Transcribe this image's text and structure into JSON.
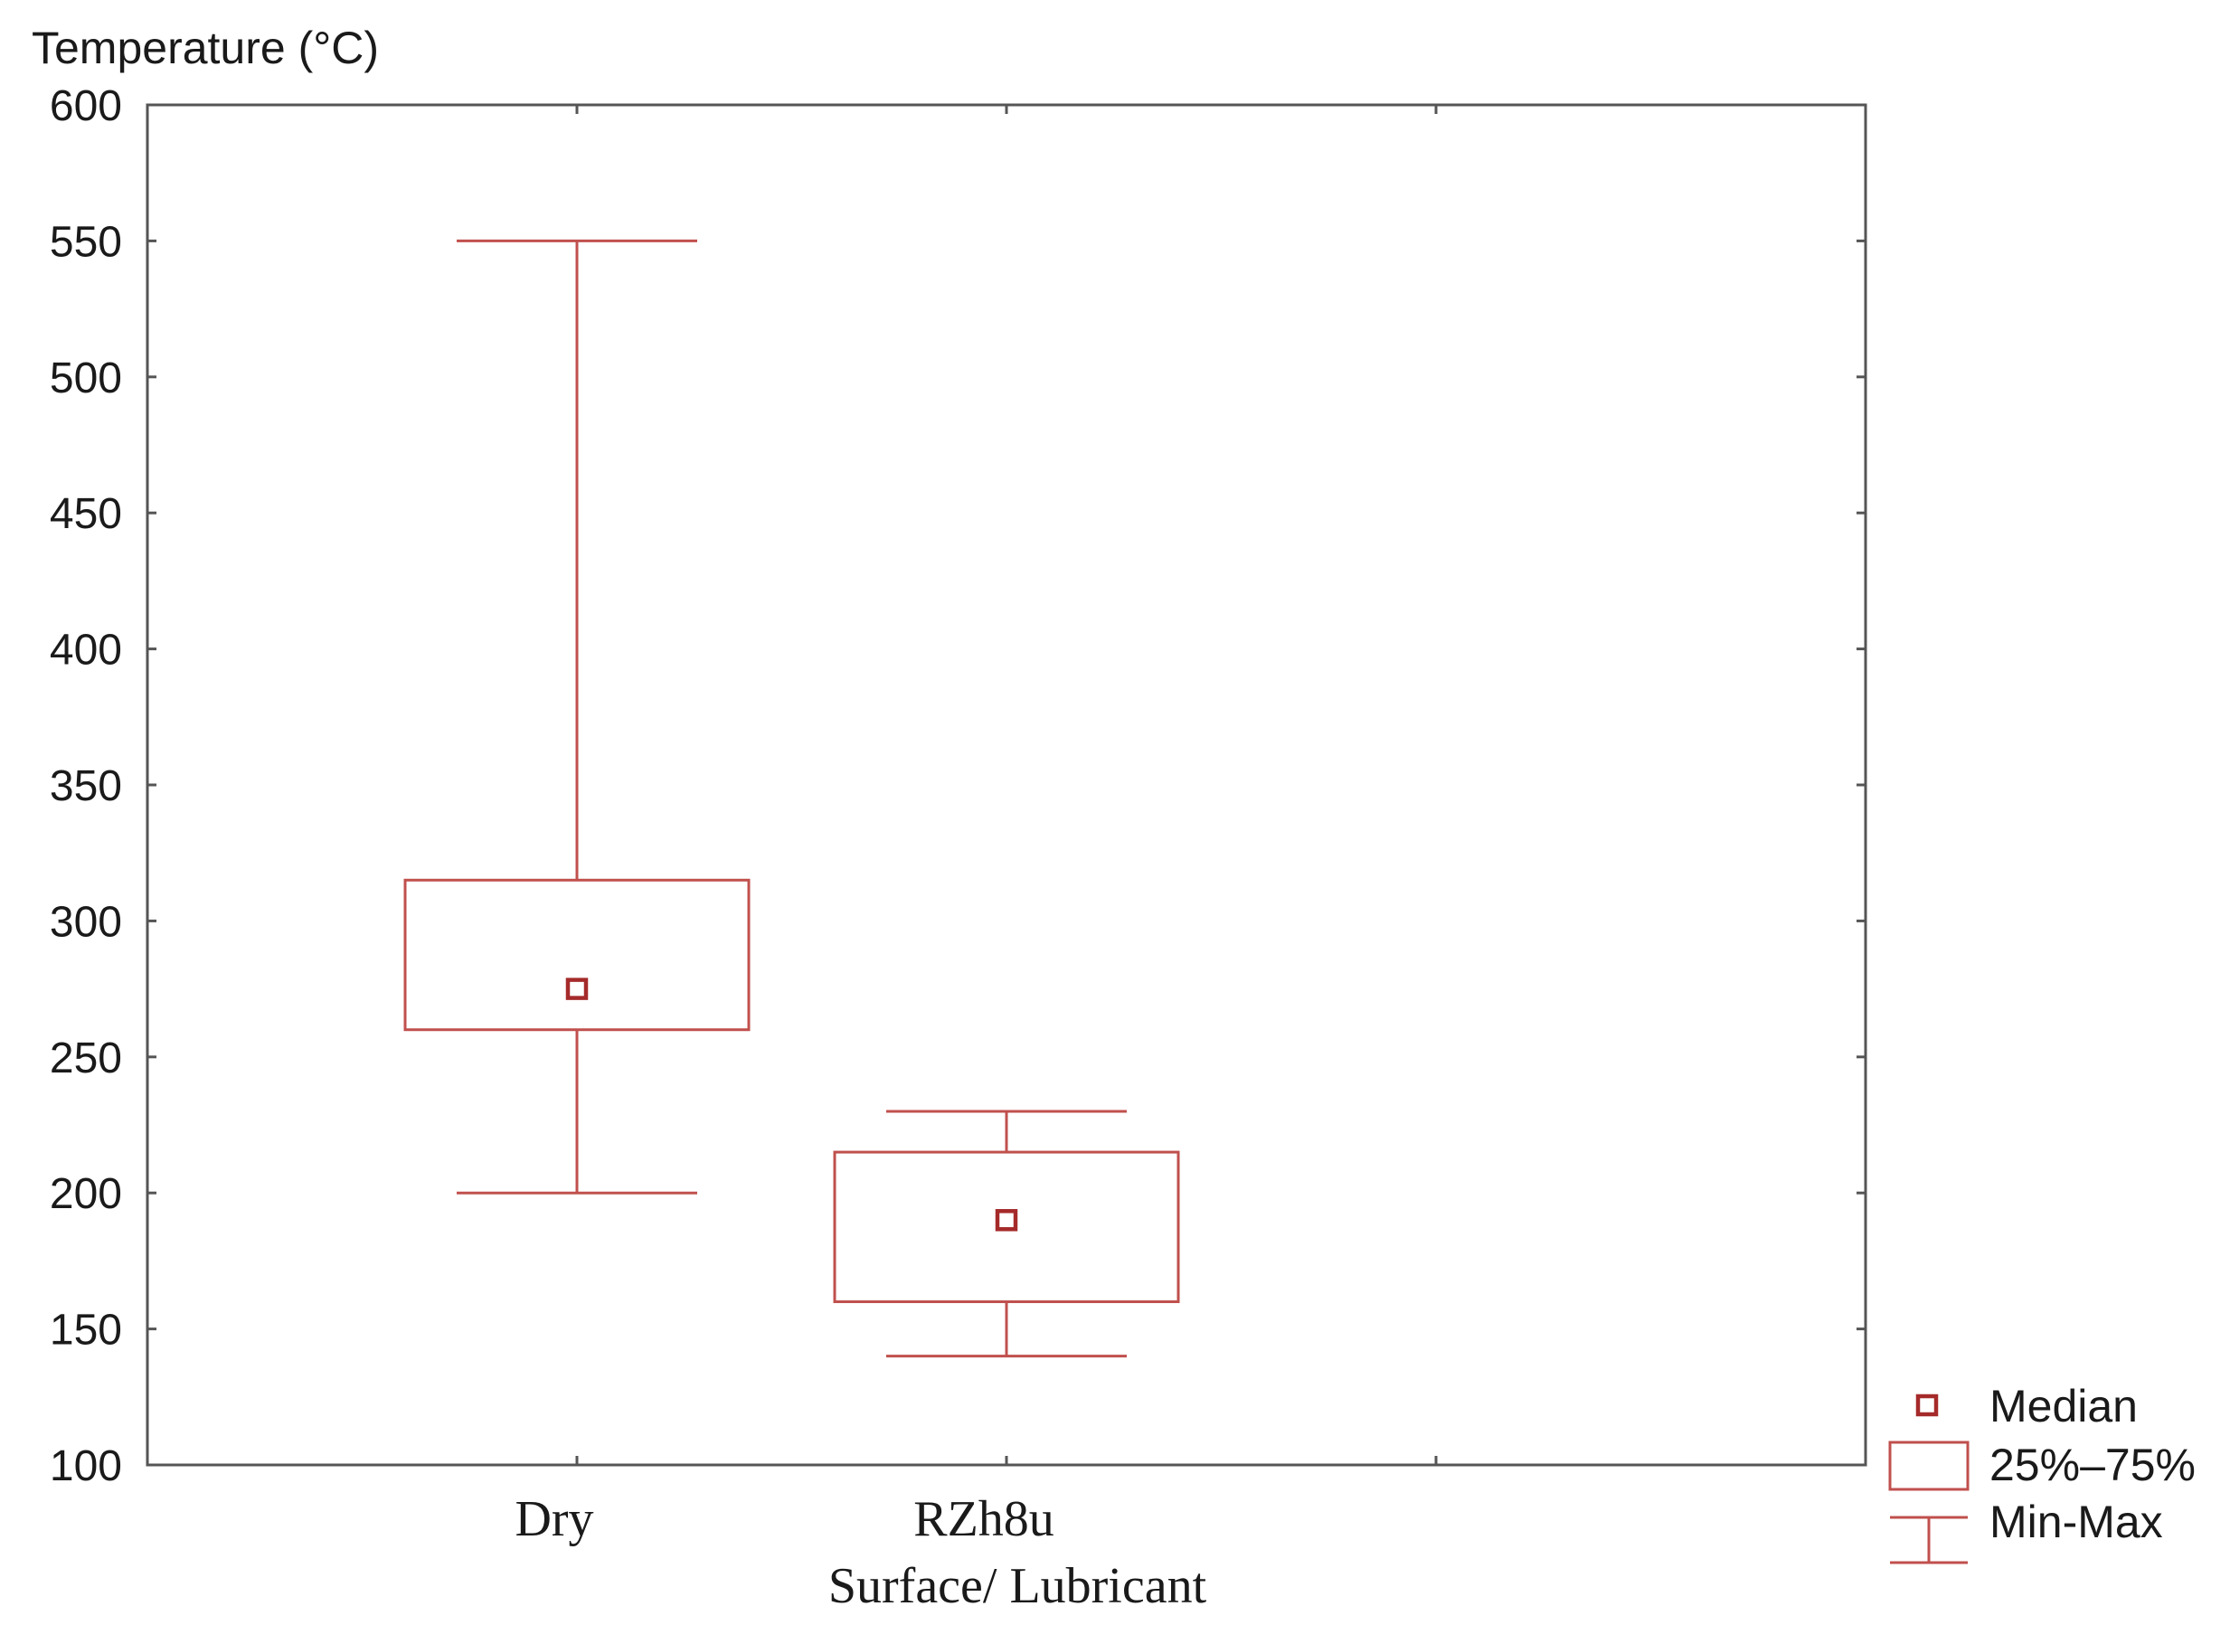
{
  "chart_data": {
    "type": "box",
    "ylabel": "Temperature (°C)",
    "xlabel": "Surface/ Lubricant",
    "ylim": [
      100,
      600
    ],
    "yticks": [
      100,
      150,
      200,
      250,
      300,
      350,
      400,
      450,
      500,
      550,
      600
    ],
    "categories": [
      "Dry",
      "RZh8u"
    ],
    "boxes": [
      {
        "category": "Dry",
        "min": 200,
        "q1": 260,
        "median": 275,
        "q3": 315,
        "max": 550
      },
      {
        "category": "RZh8u",
        "min": 140,
        "q1": 160,
        "median": 190,
        "q3": 215,
        "max": 230
      }
    ],
    "legend": {
      "position": "bottom-right",
      "items": [
        {
          "symbol": "median",
          "label": "Median"
        },
        {
          "symbol": "box",
          "label": "25%–75%"
        },
        {
          "symbol": "whisker",
          "label": "Min-Max"
        }
      ]
    },
    "colors": {
      "box": "#c0504d",
      "median": "#a52a2a",
      "axis": "#555555"
    }
  }
}
